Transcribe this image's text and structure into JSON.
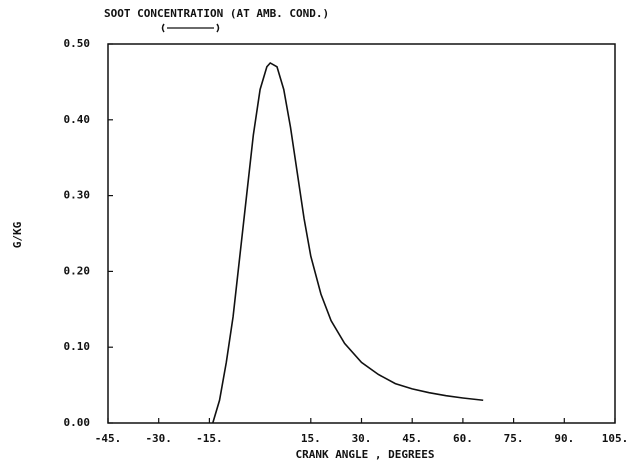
{
  "chart_data": {
    "type": "line",
    "title": "SOOT CONCENTRATION (AT AMB. COND.)",
    "x_label": "CRANK ANGLE , DEGREES",
    "y_label": "G/KG",
    "xlim": [
      -45,
      105
    ],
    "ylim": [
      0,
      0.5
    ],
    "xticks": [
      {
        "value": -45,
        "label": "-45."
      },
      {
        "value": -30,
        "label": "-30."
      },
      {
        "value": -15,
        "label": "-15."
      },
      {
        "value": 15,
        "label": "15."
      },
      {
        "value": 30,
        "label": "30."
      },
      {
        "value": 45,
        "label": "45."
      },
      {
        "value": 60,
        "label": "60."
      },
      {
        "value": 75,
        "label": "75."
      },
      {
        "value": 90,
        "label": "90."
      },
      {
        "value": 105,
        "label": "105."
      }
    ],
    "yticks": [
      {
        "value": 0,
        "label": "0.00"
      },
      {
        "value": 0.1,
        "label": "0.10"
      },
      {
        "value": 0.2,
        "label": "0.20"
      },
      {
        "value": 0.3,
        "label": "0.30"
      },
      {
        "value": 0.4,
        "label": "0.40"
      },
      {
        "value": 0.5,
        "label": "0.50"
      }
    ],
    "grid": false,
    "series": [
      {
        "color": "#111111",
        "x": [
          -14,
          -12,
          -10,
          -8,
          -6,
          -4,
          -2,
          0,
          2,
          3,
          5,
          7,
          9,
          11,
          13,
          15,
          18,
          21,
          25,
          30,
          35,
          40,
          45,
          50,
          55,
          60,
          66
        ],
        "values": [
          0.0,
          0.03,
          0.08,
          0.14,
          0.22,
          0.3,
          0.38,
          0.44,
          0.47,
          0.475,
          0.47,
          0.44,
          0.39,
          0.33,
          0.27,
          0.22,
          0.17,
          0.135,
          0.105,
          0.08,
          0.064,
          0.052,
          0.045,
          0.04,
          0.036,
          0.033,
          0.03
        ]
      }
    ]
  }
}
